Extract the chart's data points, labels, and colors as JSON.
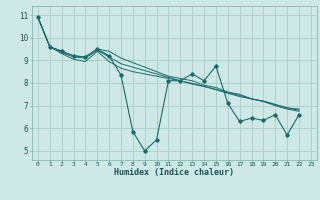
{
  "xlabel": "Humidex (Indice chaleur)",
  "background_color": "#cde8e5",
  "grid_color": "#a8ccca",
  "line_color": "#1a6b6b",
  "xlim": [
    -0.5,
    23.5
  ],
  "ylim": [
    4.6,
    11.4
  ],
  "yticks": [
    5,
    6,
    7,
    8,
    9,
    10,
    11
  ],
  "xticks": [
    0,
    1,
    2,
    3,
    4,
    5,
    6,
    7,
    8,
    9,
    10,
    11,
    12,
    13,
    14,
    15,
    16,
    17,
    18,
    19,
    20,
    21,
    22,
    23
  ],
  "series": [
    [
      10.9,
      9.6,
      9.4,
      9.2,
      9.15,
      9.5,
      9.2,
      8.35,
      5.85,
      5.0,
      5.5,
      8.1,
      8.1,
      8.4,
      8.1,
      8.75,
      7.1,
      6.3,
      6.45,
      6.35,
      6.6,
      5.7,
      6.6,
      null
    ],
    [
      10.9,
      9.6,
      9.4,
      9.2,
      9.15,
      9.5,
      9.4,
      9.1,
      8.9,
      8.7,
      8.5,
      8.3,
      8.2,
      8.1,
      7.9,
      7.8,
      7.6,
      7.5,
      7.3,
      7.2,
      7.05,
      6.9,
      6.85,
      null
    ],
    [
      10.9,
      9.6,
      9.35,
      9.15,
      9.1,
      9.45,
      9.15,
      8.85,
      8.7,
      8.55,
      8.4,
      8.25,
      8.1,
      7.95,
      7.85,
      7.7,
      7.55,
      7.4,
      7.3,
      7.2,
      7.05,
      6.9,
      6.8,
      null
    ],
    [
      10.9,
      9.6,
      9.3,
      9.05,
      8.95,
      9.4,
      8.95,
      8.65,
      8.5,
      8.4,
      8.3,
      8.2,
      8.1,
      7.98,
      7.85,
      7.72,
      7.58,
      7.45,
      7.3,
      7.18,
      7.0,
      6.85,
      6.75,
      null
    ]
  ]
}
